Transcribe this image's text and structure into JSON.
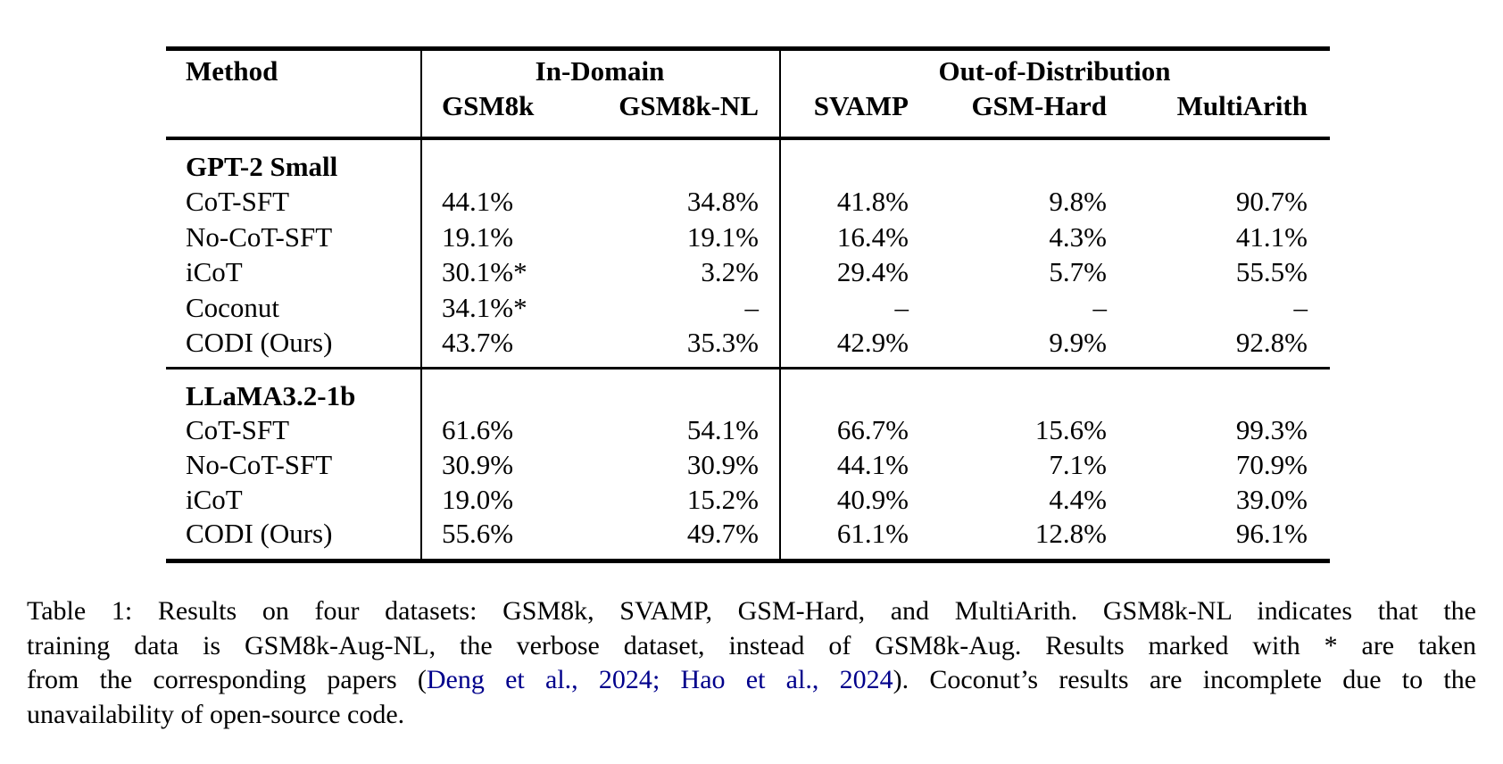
{
  "colors": {
    "text": "#000000",
    "rule": "#000000",
    "citation_link": "#00008B",
    "background": "#ffffff"
  },
  "table": {
    "header": {
      "method": "Method",
      "groups": [
        {
          "label": "In-Domain"
        },
        {
          "label": "Out-of-Distribution"
        }
      ],
      "columns": [
        "GSM8k",
        "GSM8k-NL",
        "SVAMP",
        "GSM-Hard",
        "MultiArith"
      ]
    },
    "sections": [
      {
        "title": "GPT-2 Small",
        "rows": [
          {
            "method": "CoT-SFT",
            "values": [
              "44.1%",
              "34.8%",
              "41.8%",
              "9.8%",
              "90.7%"
            ]
          },
          {
            "method": "No-CoT-SFT",
            "values": [
              "19.1%",
              "19.1%",
              "16.4%",
              "4.3%",
              "41.1%"
            ]
          },
          {
            "method": "iCoT",
            "values": [
              "30.1%*",
              "3.2%",
              "29.4%",
              "5.7%",
              "55.5%"
            ]
          },
          {
            "method": "Coconut",
            "values": [
              "34.1%*",
              "–",
              "–",
              "–",
              "–"
            ]
          },
          {
            "method": "CODI (Ours)",
            "values": [
              "43.7%",
              "35.3%",
              "42.9%",
              "9.9%",
              "92.8%"
            ]
          }
        ]
      },
      {
        "title": "LLaMA3.2-1b",
        "rows": [
          {
            "method": "CoT-SFT",
            "values": [
              "61.6%",
              "54.1%",
              "66.7%",
              "15.6%",
              "99.3%"
            ]
          },
          {
            "method": "No-CoT-SFT",
            "values": [
              "30.9%",
              "30.9%",
              "44.1%",
              "7.1%",
              "70.9%"
            ]
          },
          {
            "method": "iCoT",
            "values": [
              "19.0%",
              "15.2%",
              "40.9%",
              "4.4%",
              "39.0%"
            ]
          },
          {
            "method": "CODI (Ours)",
            "values": [
              "55.6%",
              "49.7%",
              "61.1%",
              "12.8%",
              "96.1%"
            ]
          }
        ]
      }
    ]
  },
  "caption": {
    "lines": [
      {
        "justify": true,
        "segments": [
          {
            "text": "Table 1: Results on four datasets: GSM8k, SVAMP, GSM-Hard, and MultiArith. GSM8k-NL indicates that the"
          }
        ]
      },
      {
        "justify": true,
        "segments": [
          {
            "text": "training data is GSM8k-Aug-NL, the verbose dataset, instead of GSM8k-Aug. Results marked with * are taken"
          }
        ]
      },
      {
        "justify": true,
        "segments": [
          {
            "text": "from the corresponding papers ("
          },
          {
            "text": "Deng et al., 2024",
            "cite": true
          },
          {
            "text": "; ",
            "cite": true
          },
          {
            "text": "Hao et al., 2024",
            "cite": true
          },
          {
            "text": "). Coconut’s results are incomplete due to the"
          }
        ]
      },
      {
        "justify": false,
        "segments": [
          {
            "text": "unavailability of open-source code."
          }
        ]
      }
    ]
  }
}
